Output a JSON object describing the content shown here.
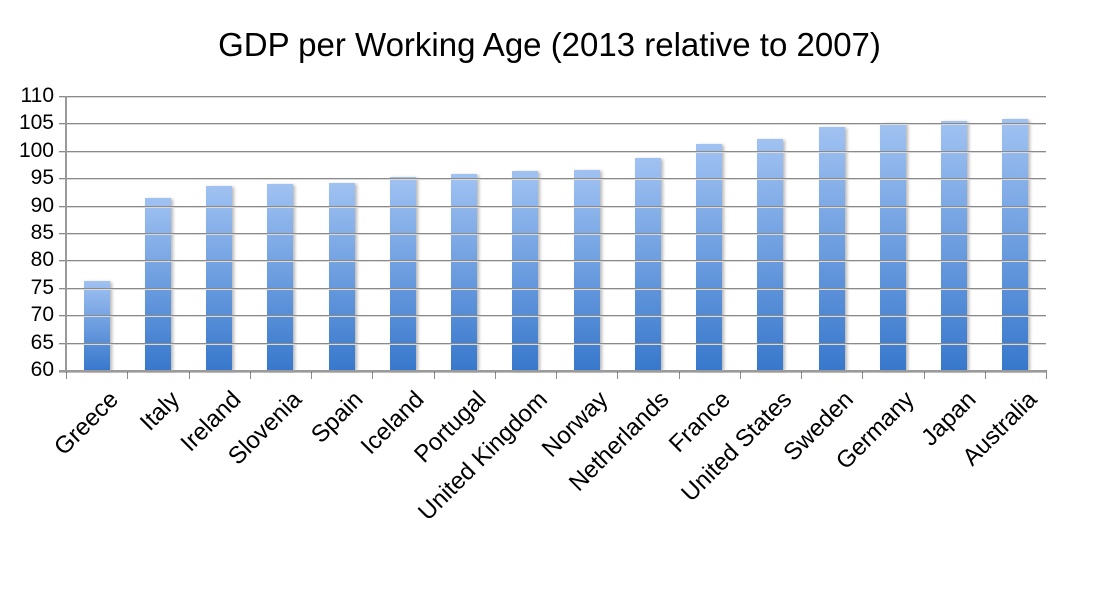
{
  "chart_data": {
    "type": "bar",
    "title": "GDP per Working Age (2013 relative to 2007)",
    "categories": [
      "Greece",
      "Italy",
      "Ireland",
      "Slovenia",
      "Spain",
      "Iceland",
      "Portugal",
      "United Kingdom",
      "Norway",
      "Netherlands",
      "France",
      "United States",
      "Sweden",
      "Germany",
      "Japan",
      "Australia"
    ],
    "values": [
      76.2,
      91.3,
      93.5,
      94.0,
      94.1,
      95.3,
      95.7,
      96.4,
      96.5,
      98.7,
      101.3,
      102.1,
      104.3,
      105.1,
      105.5,
      105.8
    ],
    "xlabel": "",
    "ylabel": "",
    "ylim": [
      60,
      110
    ],
    "ytick_step": 5,
    "ytick_labels": [
      "60",
      "65",
      "70",
      "75",
      "80",
      "85",
      "90",
      "95",
      "100",
      "105",
      "110"
    ],
    "grid": true,
    "legend": "none",
    "x_label_rotation_deg": -45,
    "colors": {
      "bar_gradient_top": "#A0C2F2",
      "bar_gradient_bottom": "#3878CC",
      "gridline": "#8A8A8A",
      "gridline_shadow": "#D9D9D9",
      "axis_line": "#9A9A9A",
      "tick": "#8A8A8A",
      "text": "#000000",
      "background": "#FFFFFF"
    }
  }
}
